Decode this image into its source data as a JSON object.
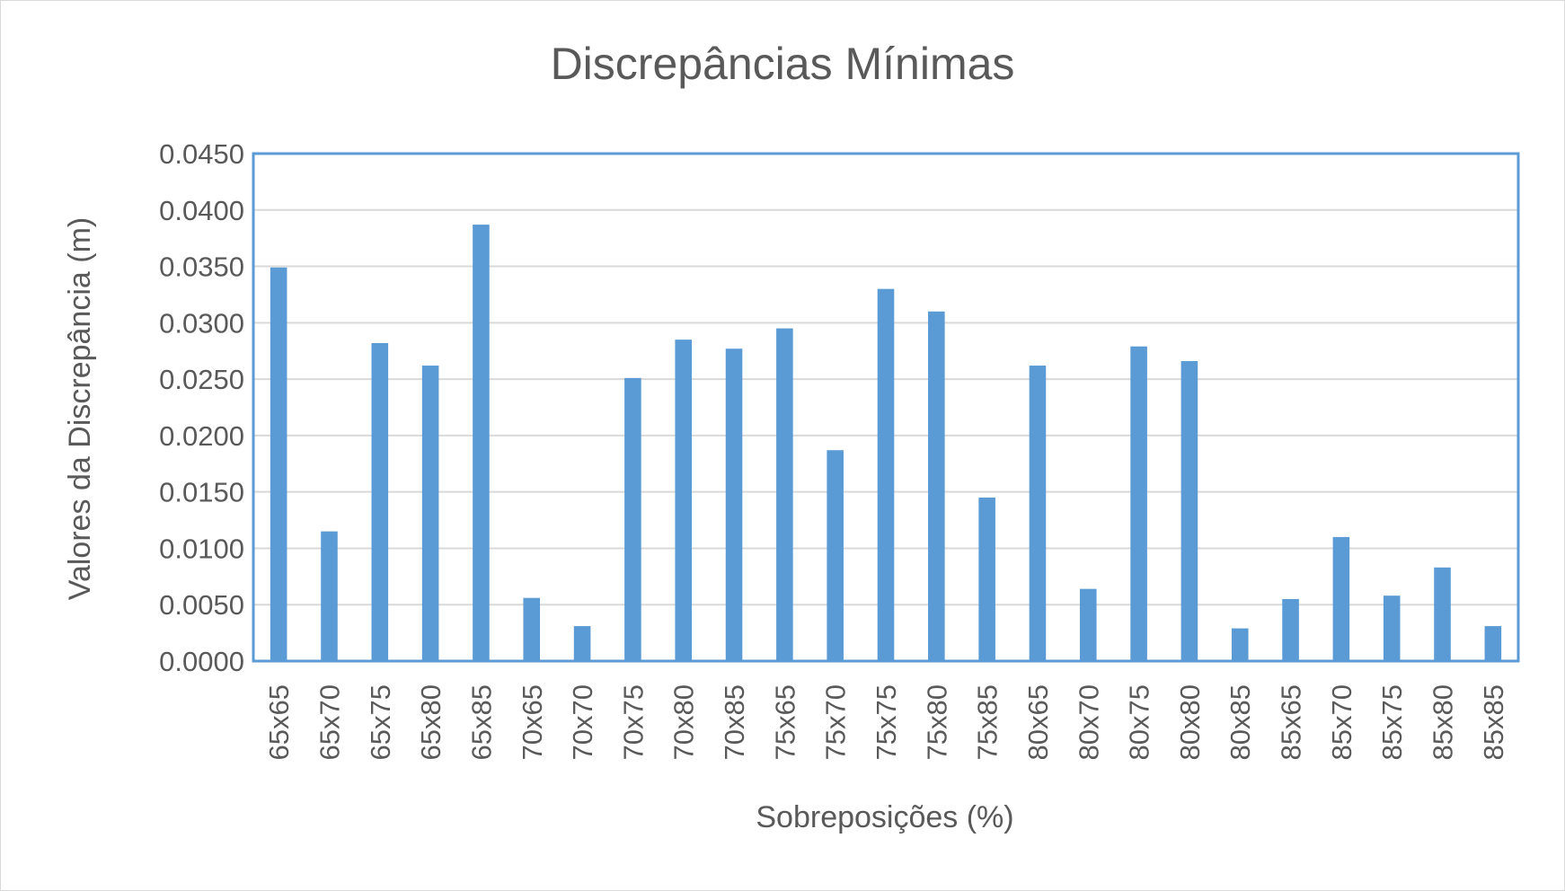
{
  "chart_data": {
    "type": "bar",
    "title": "Discrepâncias Mínimas",
    "xlabel": "Sobreposições (%)",
    "ylabel": "Valores da Discrepância (m)",
    "ylim": [
      0,
      0.045
    ],
    "yticks": [
      "0.0000",
      "0.0050",
      "0.0100",
      "0.0150",
      "0.0200",
      "0.0250",
      "0.0300",
      "0.0350",
      "0.0400",
      "0.0450"
    ],
    "categories": [
      "65x65",
      "65x70",
      "65x75",
      "65x80",
      "65x85",
      "70x65",
      "70x70",
      "70x75",
      "70x80",
      "70x85",
      "75x65",
      "75x70",
      "75x75",
      "75x80",
      "75x85",
      "80x65",
      "80x70",
      "80x75",
      "80x80",
      "80x85",
      "85x65",
      "85x70",
      "85x75",
      "85x80",
      "85x85"
    ],
    "values": [
      0.0349,
      0.0115,
      0.0282,
      0.0262,
      0.0387,
      0.0056,
      0.0031,
      0.0251,
      0.0285,
      0.0277,
      0.0295,
      0.0187,
      0.033,
      0.031,
      0.0145,
      0.0262,
      0.0064,
      0.0279,
      0.0266,
      0.0029,
      0.0055,
      0.011,
      0.0058,
      0.0083,
      0.0031
    ],
    "grid": true,
    "colors": {
      "bar": "#5b9bd5",
      "grid": "#d9d9d9",
      "plot_border": "#5b9bd5",
      "text": "#595959"
    }
  }
}
